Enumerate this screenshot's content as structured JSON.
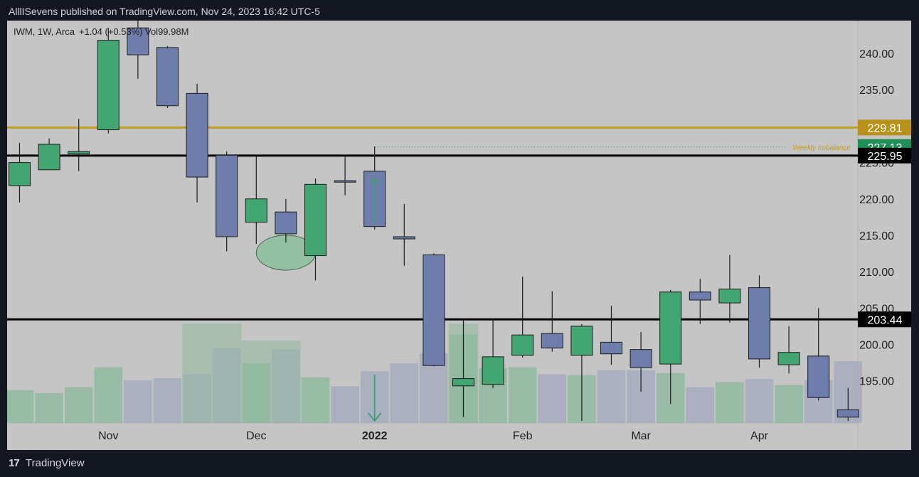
{
  "header": {
    "publisher_line": "AlllISevens published on TradingView.com, Nov 24, 2023 16:42 UTC-5"
  },
  "footer": {
    "logo_glyph": "17",
    "brand": "TradingView"
  },
  "colors": {
    "up_body": "#43a56f",
    "down_body": "#6d7eac",
    "candle_outline": "#1b1b1b",
    "wick": "#1b1b1b",
    "resistance_line": "#000000",
    "gold_line": "#c29d1f",
    "imbalance_dotted": "#44a577",
    "vol_up": "#8fb99f",
    "vol_down": "#a6abbe",
    "ellipse_fill": "#8fbf9c",
    "arrow": "#3f9e6e"
  },
  "chart_data": {
    "type": "candlestick",
    "symbol_info": "IWM, 1W, Arca",
    "change_info": "+1.04 (+0.53%)",
    "volume_info": "Vol99.98M",
    "ylim": [
      189.2,
      244.5
    ],
    "y_ticks": [
      195,
      200,
      205,
      210,
      215,
      220,
      225,
      230,
      235,
      240
    ],
    "y_tick_labels": [
      "195.00",
      "200.00",
      "205.00",
      "210.00",
      "215.00",
      "220.00",
      "225.00",
      "230.00",
      "235.00",
      "240.00"
    ],
    "x_labels": [
      {
        "label": "Nov",
        "index": 3,
        "bold": false
      },
      {
        "label": "Dec",
        "index": 8,
        "bold": false
      },
      {
        "label": "2022",
        "index": 12,
        "bold": true
      },
      {
        "label": "Feb",
        "index": 17,
        "bold": false
      },
      {
        "label": "Mar",
        "index": 21,
        "bold": false
      },
      {
        "label": "Apr",
        "index": 25,
        "bold": false
      }
    ],
    "candles": [
      {
        "o": 221.8,
        "h": 227.7,
        "l": 219.5,
        "c": 225.0
      },
      {
        "o": 224.0,
        "h": 228.3,
        "l": 224.0,
        "c": 227.5
      },
      {
        "o": 226.2,
        "h": 231.0,
        "l": 223.8,
        "c": 226.5
      },
      {
        "o": 229.5,
        "h": 243.5,
        "l": 229.0,
        "c": 241.8
      },
      {
        "o": 243.5,
        "h": 245.0,
        "l": 236.5,
        "c": 239.8
      },
      {
        "o": 240.8,
        "h": 241.0,
        "l": 232.5,
        "c": 232.8
      },
      {
        "o": 234.5,
        "h": 235.8,
        "l": 219.5,
        "c": 223.0
      },
      {
        "o": 226.0,
        "h": 226.5,
        "l": 212.8,
        "c": 214.8
      },
      {
        "o": 216.8,
        "h": 226.0,
        "l": 213.8,
        "c": 220.0
      },
      {
        "o": 218.2,
        "h": 220.0,
        "l": 214.0,
        "c": 215.2
      },
      {
        "o": 212.2,
        "h": 222.8,
        "l": 208.8,
        "c": 222.0
      },
      {
        "o": 222.5,
        "h": 226.0,
        "l": 220.5,
        "c": 222.3
      },
      {
        "o": 223.8,
        "h": 227.2,
        "l": 215.8,
        "c": 216.2
      },
      {
        "o": 214.8,
        "h": 219.3,
        "l": 210.8,
        "c": 214.5
      },
      {
        "o": 212.3,
        "h": 212.5,
        "l": 197.0,
        "c": 197.1
      },
      {
        "o": 194.3,
        "h": 203.3,
        "l": 190.0,
        "c": 195.3
      },
      {
        "o": 194.5,
        "h": 203.5,
        "l": 194.0,
        "c": 198.3
      },
      {
        "o": 198.5,
        "h": 209.3,
        "l": 198.2,
        "c": 201.3
      },
      {
        "o": 201.5,
        "h": 207.3,
        "l": 199.0,
        "c": 199.5
      },
      {
        "o": 198.5,
        "h": 202.8,
        "l": 189.5,
        "c": 202.5
      },
      {
        "o": 200.3,
        "h": 205.3,
        "l": 197.2,
        "c": 198.7
      },
      {
        "o": 199.3,
        "h": 201.7,
        "l": 193.5,
        "c": 196.8
      },
      {
        "o": 197.3,
        "h": 207.5,
        "l": 191.8,
        "c": 207.2
      },
      {
        "o": 207.2,
        "h": 209.0,
        "l": 202.8,
        "c": 206.1
      },
      {
        "o": 205.7,
        "h": 212.3,
        "l": 203.0,
        "c": 207.6
      },
      {
        "o": 207.8,
        "h": 209.5,
        "l": 196.8,
        "c": 198.0
      },
      {
        "o": 197.2,
        "h": 202.5,
        "l": 196.0,
        "c": 198.9
      },
      {
        "o": 198.4,
        "h": 205.0,
        "l": 192.3,
        "c": 192.7
      },
      {
        "o": 191.0,
        "h": 194.0,
        "l": 189.5,
        "c": 190.0
      }
    ],
    "volume_levels": [
      0.33,
      0.3,
      0.36,
      0.56,
      0.43,
      0.45,
      0.49,
      0.75,
      0.6,
      0.74,
      0.46,
      0.37,
      0.52,
      0.6,
      0.7,
      0.89,
      0.55,
      0.56,
      0.49,
      0.48,
      0.53,
      0.53,
      0.5,
      0.36,
      0.41,
      0.44,
      0.38,
      0.43,
      0.62
    ],
    "highlight_volume_boxes": [
      {
        "from_index": 6,
        "to_index": 7,
        "level": 1.0
      },
      {
        "from_index": 8,
        "to_index": 9,
        "level": 0.83
      },
      {
        "from_index": 15,
        "to_index": 15,
        "level": 1.0
      }
    ],
    "horizontal_levels": [
      {
        "value": 229.81,
        "label": "229.81",
        "role": "gold-resistance"
      },
      {
        "value": 225.95,
        "label": "225.95",
        "role": "black-resistance"
      },
      {
        "value": 203.44,
        "label": "203.44",
        "role": "black-support"
      }
    ],
    "current_price": {
      "value": 227.13,
      "label": "227.13"
    },
    "imbalance": {
      "value": 227.13,
      "label": "Weekly Imbalance",
      "from_index": 12
    },
    "annotations": {
      "ellipse": {
        "index_from": 8,
        "index_to": 10,
        "y_center": 212.6,
        "y_radius": 2.4
      },
      "arrow_up_index": 12,
      "arrow_down_index": 12
    }
  }
}
